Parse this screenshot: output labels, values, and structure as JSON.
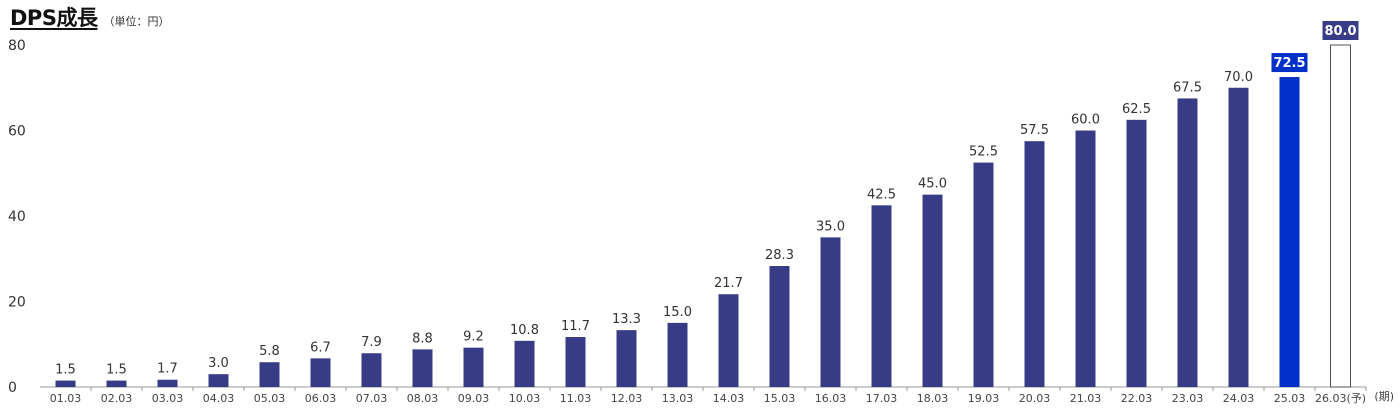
{
  "chart_data": {
    "type": "bar",
    "title": "DPS成長",
    "unit_label": "（単位：円）",
    "x_unit_label": "(期)",
    "ylim": [
      0,
      80
    ],
    "yticks": [
      0,
      20,
      40,
      60,
      80
    ],
    "categories": [
      "01.03",
      "02.03",
      "03.03",
      "04.03",
      "05.03",
      "06.03",
      "07.03",
      "08.03",
      "09.03",
      "10.03",
      "11.03",
      "12.03",
      "13.03",
      "14.03",
      "15.03",
      "16.03",
      "17.03",
      "18.03",
      "19.03",
      "20.03",
      "21.03",
      "22.03",
      "23.03",
      "24.03",
      "25.03",
      "26.03(予)"
    ],
    "values": [
      1.5,
      1.5,
      1.7,
      3.0,
      5.8,
      6.7,
      7.9,
      8.8,
      9.2,
      10.8,
      11.7,
      13.3,
      15.0,
      21.7,
      28.3,
      35.0,
      42.5,
      45.0,
      52.5,
      57.5,
      60.0,
      62.5,
      67.5,
      70.0,
      72.5,
      80.0
    ],
    "value_labels": [
      "1.5",
      "1.5",
      "1.7",
      "3.0",
      "5.8",
      "6.7",
      "7.9",
      "8.8",
      "9.2",
      "10.8",
      "11.7",
      "13.3",
      "15.0",
      "21.7",
      "28.3",
      "35.0",
      "42.5",
      "45.0",
      "52.5",
      "57.5",
      "60.0",
      "62.5",
      "67.5",
      "70.0",
      "72.5",
      "80.0"
    ],
    "colors": {
      "bar": "#383c87",
      "current": "#0030c8",
      "forecast_fill": "#ffffff",
      "forecast_stroke": "#555555",
      "forecast_label_bg": "#383c87",
      "axis": "#999999"
    },
    "highlight_index": 24,
    "forecast_index": 25,
    "grid": false
  }
}
